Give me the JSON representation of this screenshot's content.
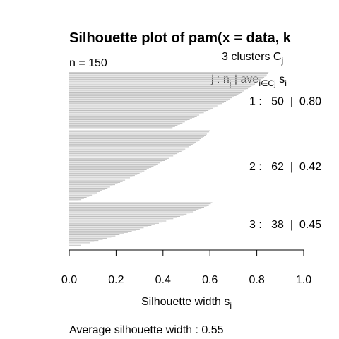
{
  "chart_data": {
    "type": "bar",
    "orientation": "horizontal",
    "title": "Silhouette plot of pam(x = data, k",
    "n_label": "n = 150",
    "header": {
      "clusters_prefix": "3  clusters  C",
      "clusters_sub": "j",
      "legend_j": "j :  n",
      "legend_nsub": "j",
      "legend_ave": " | ave",
      "legend_avesub": "i∈Cj",
      "legend_s": "  s",
      "legend_ssub": "i"
    },
    "xlabel": "Silhouette width s",
    "xlabel_sub": "i",
    "xlim": [
      0,
      1
    ],
    "xticks": [
      0.0,
      0.2,
      0.4,
      0.6,
      0.8,
      1.0
    ],
    "xtick_labels": [
      "0.0",
      "0.2",
      "0.4",
      "0.6",
      "0.8",
      "1.0"
    ],
    "footer": "Average silhouette width :  0.55",
    "bar_color": "#bebebe",
    "clusters": [
      {
        "label": "1 :   50  |  0.80",
        "n": 50,
        "avg": 0.8,
        "max": 0.85,
        "min": 0.43
      },
      {
        "label": "2 :   62  |  0.42",
        "n": 62,
        "avg": 0.42,
        "max": 0.6,
        "min": 0.04
      },
      {
        "label": "3 :   38  |  0.45",
        "n": 38,
        "avg": 0.45,
        "max": 0.61,
        "min": 0.05
      }
    ]
  }
}
